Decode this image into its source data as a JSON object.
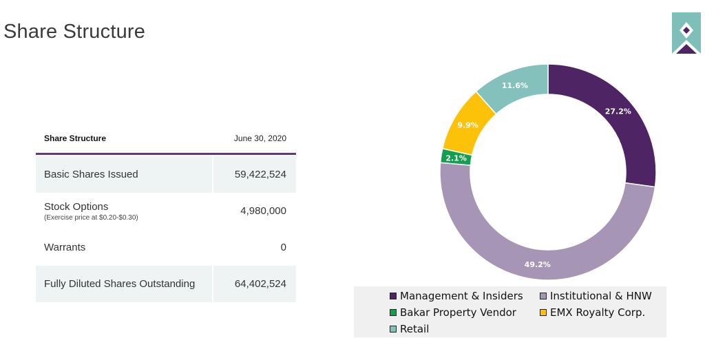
{
  "page": {
    "title": "Share Structure"
  },
  "table": {
    "header_label": "Share Structure",
    "header_date": "June 30, 2020",
    "rows": [
      {
        "label": "Basic Shares Issued",
        "sub": "",
        "value": "59,422,524"
      },
      {
        "label": "Stock Options",
        "sub": "(Exercise price at $0.20-$0.30)",
        "value": "4,980,000"
      },
      {
        "label": "Warrants",
        "sub": "",
        "value": "0"
      },
      {
        "label": "Fully Diluted Shares Outstanding",
        "sub": "",
        "value": "64,402,524"
      }
    ]
  },
  "chart_data": {
    "type": "pie",
    "title": "",
    "categories": [
      "Management & Insiders",
      "Institutional & HNW",
      "Bakar Property Vendor",
      "EMX Royalty Corp.",
      "Retail"
    ],
    "values": [
      27.2,
      49.2,
      2.1,
      9.9,
      11.6
    ],
    "labels": [
      "27.2%",
      "49.2%",
      "2.1%",
      "9.9%",
      "11.6%"
    ],
    "colors": [
      "#4e2464",
      "#a795b5",
      "#10a04f",
      "#fcc20a",
      "#84c1bd"
    ],
    "label_colors": [
      "#ffffff",
      "#ffffff",
      "#ffffff",
      "#ffffff",
      "#ffffff"
    ],
    "legend_position": "bottom"
  }
}
